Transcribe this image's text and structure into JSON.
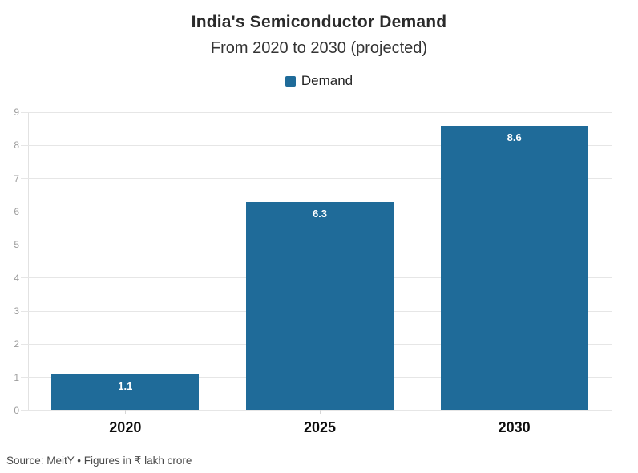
{
  "header": {
    "title": "India's Semiconductor Demand",
    "subtitle": "From 2020 to 2030 (projected)"
  },
  "legend": {
    "items": [
      {
        "label": "Demand",
        "color": "#1f6b99"
      }
    ]
  },
  "chart_data": {
    "type": "bar",
    "title": "India's Semiconductor Demand",
    "subtitle": "From 2020 to 2030 (projected)",
    "categories": [
      "2020",
      "2025",
      "2030"
    ],
    "series": [
      {
        "name": "Demand",
        "values": [
          1.1,
          6.3,
          8.6
        ]
      }
    ],
    "value_labels": [
      "1.1",
      "6.3",
      "8.6"
    ],
    "ylim": [
      0,
      9
    ],
    "yticks": [
      0,
      1,
      2,
      3,
      4,
      5,
      6,
      7,
      8,
      9
    ],
    "grid": true,
    "legend_position": "top",
    "bar_color": "#1f6b99",
    "unit": "₹ lakh crore"
  },
  "colors": {
    "bar": "#1f6b99",
    "gridline": "#e6e6e6",
    "axis_label": "#9c9c9c",
    "category_label": "#0d0d0d",
    "value_label": "#ffffff"
  },
  "footer": {
    "source": "Source: MeitY • Figures in ₹ lakh crore"
  }
}
